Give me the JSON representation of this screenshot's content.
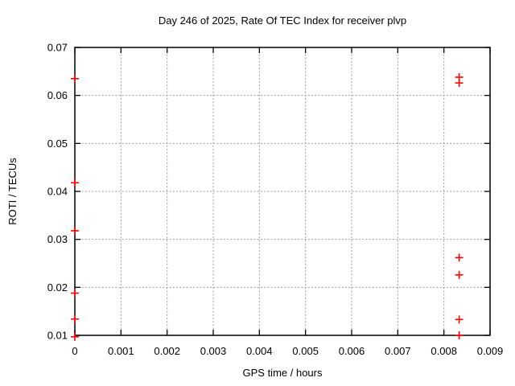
{
  "chart_data": {
    "type": "scatter",
    "title": "Day 246 of 2025, Rate Of TEC Index for receiver plvp",
    "xlabel": "GPS time / hours",
    "ylabel": "ROTI / TECUs",
    "xlim": [
      0,
      0.009
    ],
    "ylim": [
      0.01,
      0.07
    ],
    "x_ticks": [
      0,
      0.001,
      0.002,
      0.003,
      0.004,
      0.005,
      0.006,
      0.007,
      0.008,
      0.009
    ],
    "x_tick_labels": [
      "0",
      "0.001",
      "0.002",
      "0.003",
      "0.004",
      "0.005",
      "0.006",
      "0.007",
      "0.008",
      "0.009"
    ],
    "y_ticks": [
      0.01,
      0.02,
      0.03,
      0.04,
      0.05,
      0.06,
      0.07
    ],
    "y_tick_labels": [
      "0.01",
      "0.02",
      "0.03",
      "0.04",
      "0.05",
      "0.06",
      "0.07"
    ],
    "grid": true,
    "legend_position": "none",
    "marker": "plus",
    "colors": {
      "points": "#ff0000",
      "grid": "#999999",
      "axis": "#000000",
      "text": "#000000"
    },
    "series": [
      {
        "name": "ROTI",
        "points": [
          {
            "x": 0,
            "y": 0.0635
          },
          {
            "x": 0,
            "y": 0.0418
          },
          {
            "x": 0,
            "y": 0.0318
          },
          {
            "x": 0,
            "y": 0.0188
          },
          {
            "x": 0,
            "y": 0.0134
          },
          {
            "x": 0,
            "y": 0.0097
          },
          {
            "x": 0.00833,
            "y": 0.0638
          },
          {
            "x": 0.00833,
            "y": 0.0626
          },
          {
            "x": 0.00833,
            "y": 0.0262
          },
          {
            "x": 0.00833,
            "y": 0.0226
          },
          {
            "x": 0.00833,
            "y": 0.0133
          },
          {
            "x": 0.00833,
            "y": 0.01
          }
        ]
      }
    ]
  }
}
